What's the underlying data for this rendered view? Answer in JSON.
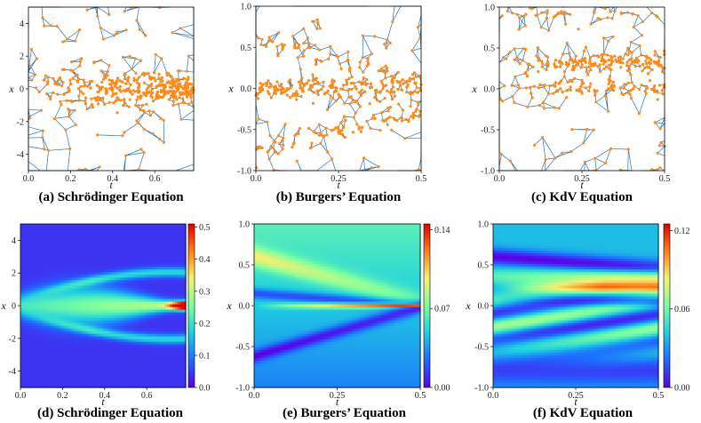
{
  "colors": {
    "mesh": "#2a72b5",
    "points": "#ff8c1a",
    "colormap": [
      "#5a00e6",
      "#1e6cff",
      "#1fd1e0",
      "#7dffa0",
      "#f5f070",
      "#ff7a1a",
      "#e10000"
    ]
  },
  "chart_data": [
    {
      "id": "a",
      "type": "scatter",
      "caption": "(a) Schrödinger Equation",
      "xlabel": "t",
      "ylabel": "x",
      "xlim": [
        0,
        0.785
      ],
      "ylim": [
        -5,
        5
      ],
      "xticks": [
        "0.0",
        "0.2",
        "0.4",
        "0.6"
      ],
      "xtick_values": [
        0,
        0.2,
        0.4,
        0.6
      ],
      "yticks": [
        "4",
        "2",
        "0",
        "-2",
        "-4"
      ],
      "ytick_values": [
        4,
        2,
        0,
        -2,
        -4
      ],
      "content": "triangulated mesh with collocation points concentrated near x=0, densest at t≈0.7"
    },
    {
      "id": "b",
      "type": "scatter",
      "caption": "(b) Burgers’ Equation",
      "xlabel": "t",
      "ylabel": "x",
      "xlim": [
        0,
        0.5
      ],
      "ylim": [
        -1,
        1
      ],
      "xticks": [
        "0.0",
        "0.25",
        "0.5"
      ],
      "xtick_values": [
        0,
        0.25,
        0.5
      ],
      "yticks": [
        "1.0",
        "0.5",
        "0.0",
        "-0.5",
        "-1.0"
      ],
      "ytick_values": [
        1,
        0.5,
        0,
        -0.5,
        -1
      ],
      "content": "triangulated mesh with collocation points along x≈0 and along the shock bands"
    },
    {
      "id": "c",
      "type": "scatter",
      "caption": "(c) KdV Equation",
      "xlabel": "t",
      "ylabel": "x",
      "xlim": [
        0,
        0.5
      ],
      "ylim": [
        -1,
        1
      ],
      "xticks": [
        "0.0",
        "0.25",
        "0.5"
      ],
      "xtick_values": [
        0,
        0.25,
        0.5
      ],
      "yticks": [
        "1.0",
        "0.5",
        "0.0",
        "-0.5",
        "-1.0"
      ],
      "ytick_values": [
        1,
        0.5,
        0,
        -0.5,
        -1
      ],
      "content": "triangulated mesh with collocation points concentrated near x≈0.3 and x≈0"
    },
    {
      "id": "d",
      "type": "heatmap",
      "caption": "(d) Schrödinger Equation",
      "xlabel": "t",
      "ylabel": "x",
      "xlim": [
        0,
        0.785
      ],
      "ylim": [
        -5,
        5
      ],
      "xticks": [
        "0.0",
        "0.2",
        "0.4",
        "0.6"
      ],
      "xtick_values": [
        0,
        0.2,
        0.4,
        0.6
      ],
      "yticks": [
        "4",
        "2",
        "0",
        "-2",
        "-4"
      ],
      "ytick_values": [
        4,
        2,
        0,
        -2,
        -4
      ],
      "colorbar_ticks": [
        "0.5",
        "0.4",
        "0.3",
        "0.2",
        "0.1",
        "0.0"
      ],
      "colorbar_values": [
        0.5,
        0.4,
        0.3,
        0.2,
        0.1,
        0.0
      ],
      "colorbar_range": [
        0,
        0.51
      ]
    },
    {
      "id": "e",
      "type": "heatmap",
      "caption": "(e) Burgers’ Equation",
      "xlabel": "t",
      "ylabel": "x",
      "xlim": [
        0,
        0.5
      ],
      "ylim": [
        -1,
        1
      ],
      "xticks": [
        "0.0",
        "0.25",
        "0.5"
      ],
      "xtick_values": [
        0,
        0.25,
        0.5
      ],
      "yticks": [
        "1.0",
        "0.5",
        "0.0",
        "-0.5",
        "-1.0"
      ],
      "ytick_values": [
        1,
        0.5,
        0,
        -0.5,
        -1
      ],
      "colorbar_ticks": [
        "0.14",
        "0.07",
        "0.00"
      ],
      "colorbar_values": [
        0.14,
        0.07,
        0.0
      ],
      "colorbar_range": [
        0,
        0.145
      ]
    },
    {
      "id": "f",
      "type": "heatmap",
      "caption": "(f) KdV Equation",
      "xlabel": "t",
      "ylabel": "x",
      "xlim": [
        0,
        0.5
      ],
      "ylim": [
        -1,
        1
      ],
      "xticks": [
        "0.0",
        "0.25",
        "0.5"
      ],
      "xtick_values": [
        0,
        0.25,
        0.5
      ],
      "yticks": [
        "1.0",
        "0.5",
        "0.0",
        "-0.5",
        "-1.0"
      ],
      "ytick_values": [
        1,
        0.5,
        0,
        -0.5,
        -1
      ],
      "colorbar_ticks": [
        "0.12",
        "0.06",
        "0.00"
      ],
      "colorbar_values": [
        0.12,
        0.06,
        0.0
      ],
      "colorbar_range": [
        0,
        0.125
      ]
    }
  ]
}
